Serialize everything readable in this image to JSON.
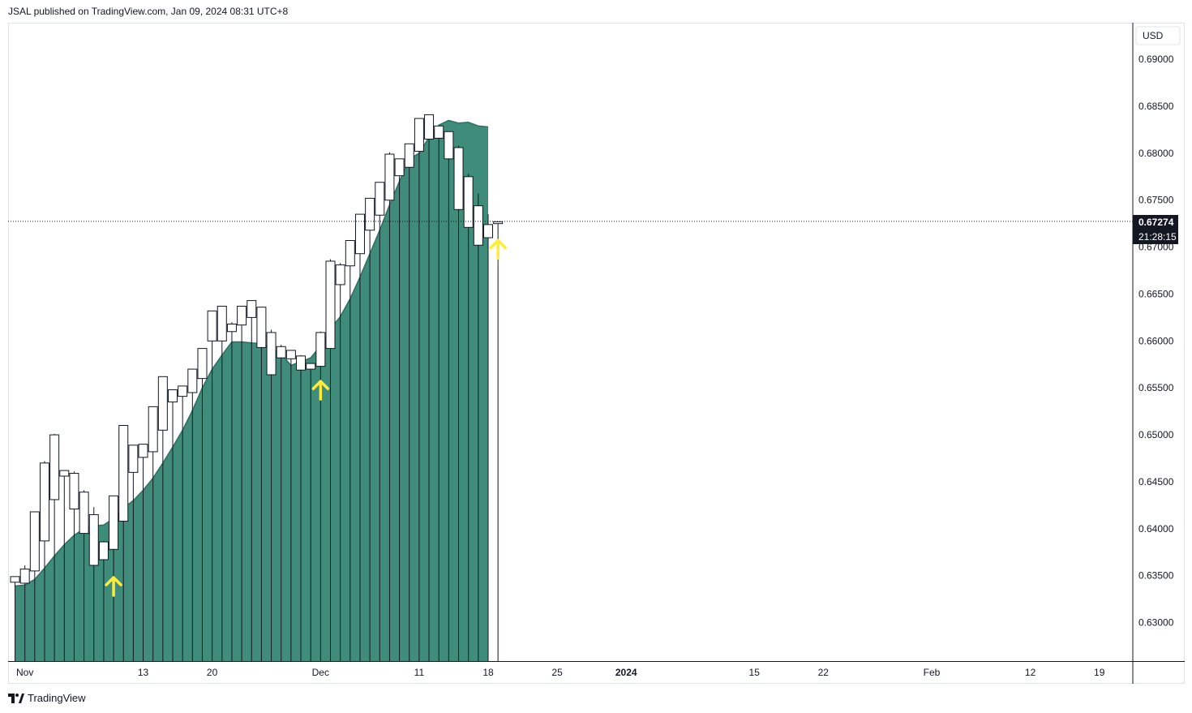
{
  "header": {
    "text": "JSAL published on TradingView.com, Jan 09, 2024 08:31 UTC+8"
  },
  "footer": {
    "brand": "TradingView"
  },
  "currency": "USD",
  "price_label": {
    "value": "0.67274",
    "countdown": "21:28:15"
  },
  "colors": {
    "area_fill": "#3f8c7b",
    "area_line": "#2c6e60",
    "candle_stroke": "#131722",
    "candle_body": "#ffffff",
    "arrow": "#ffeb3b",
    "price_label_bg": "#131722",
    "grid": "#e0e3eb"
  },
  "chart_data": {
    "type": "candlestick",
    "y_ticks": [
      "0.69000",
      "0.68500",
      "0.68000",
      "0.67500",
      "0.67000",
      "0.66500",
      "0.66000",
      "0.65500",
      "0.65000",
      "0.64500",
      "0.64000",
      "0.63500",
      "0.63000"
    ],
    "y_tick_values": [
      0.69,
      0.685,
      0.68,
      0.675,
      0.67,
      0.665,
      0.66,
      0.655,
      0.65,
      0.645,
      0.64,
      0.635,
      0.63
    ],
    "x_ticks": [
      {
        "label": "Nov",
        "day": 0,
        "bold": false
      },
      {
        "label": "13",
        "day": 12,
        "bold": false
      },
      {
        "label": "20",
        "day": 19,
        "bold": false
      },
      {
        "label": "Dec",
        "day": 30,
        "bold": false
      },
      {
        "label": "11",
        "day": 40,
        "bold": false
      },
      {
        "label": "18",
        "day": 47,
        "bold": false
      },
      {
        "label": "25",
        "day": 54,
        "bold": false
      },
      {
        "label": "2024",
        "day": 61,
        "bold": true
      },
      {
        "label": "15",
        "day": 74,
        "bold": false
      },
      {
        "label": "22",
        "day": 81,
        "bold": false
      },
      {
        "label": "Feb",
        "day": 92,
        "bold": false
      },
      {
        "label": "12",
        "day": 102,
        "bold": false
      },
      {
        "label": "19",
        "day": 109,
        "bold": false
      }
    ],
    "ylim": [
      0.6259,
      0.6939
    ],
    "xlim_days": [
      -1.7,
      112.4
    ],
    "candles": [
      {
        "date": "Oct 31",
        "day": -1,
        "open": 0.6343,
        "high": 0.6349,
        "low": 0.6339,
        "close": 0.6349
      },
      {
        "date": "Nov 01",
        "day": 0,
        "open": 0.6342,
        "high": 0.6361,
        "low": 0.6338,
        "close": 0.6357
      },
      {
        "date": "Nov 02",
        "day": 1,
        "open": 0.6355,
        "high": 0.6418,
        "low": 0.6352,
        "close": 0.6418
      },
      {
        "date": "Nov 03",
        "day": 2,
        "open": 0.6387,
        "high": 0.6472,
        "low": 0.6382,
        "close": 0.647
      },
      {
        "date": "Nov 06",
        "day": 3,
        "open": 0.6431,
        "high": 0.6501,
        "low": 0.643,
        "close": 0.65
      },
      {
        "date": "Nov 07",
        "day": 4,
        "open": 0.6456,
        "high": 0.6462,
        "low": 0.645,
        "close": 0.6462
      },
      {
        "date": "Nov 08",
        "day": 5,
        "open": 0.6459,
        "high": 0.6461,
        "low": 0.642,
        "close": 0.6421
      },
      {
        "date": "Nov 09",
        "day": 6,
        "open": 0.6439,
        "high": 0.6441,
        "low": 0.6392,
        "close": 0.6395
      },
      {
        "date": "Nov 10",
        "day": 7,
        "open": 0.6415,
        "high": 0.6423,
        "low": 0.6361,
        "close": 0.6361
      },
      {
        "date": "Nov 13",
        "day": 8,
        "open": 0.6386,
        "high": 0.6387,
        "low": 0.6367,
        "close": 0.6367
      },
      {
        "date": "Nov 14",
        "day": 9,
        "open": 0.6378,
        "high": 0.6435,
        "low": 0.6375,
        "close": 0.6435
      },
      {
        "date": "Nov 15",
        "day": 10,
        "open": 0.6408,
        "high": 0.651,
        "low": 0.6405,
        "close": 0.651
      },
      {
        "date": "Nov 16",
        "day": 11,
        "open": 0.646,
        "high": 0.6489,
        "low": 0.6455,
        "close": 0.6489
      },
      {
        "date": "Nov 17",
        "day": 12,
        "open": 0.6476,
        "high": 0.649,
        "low": 0.6462,
        "close": 0.649
      },
      {
        "date": "Nov 20",
        "day": 13,
        "open": 0.6482,
        "high": 0.653,
        "low": 0.648,
        "close": 0.653
      },
      {
        "date": "Nov 21",
        "day": 14,
        "open": 0.6505,
        "high": 0.6562,
        "low": 0.65,
        "close": 0.6562
      },
      {
        "date": "Nov 22",
        "day": 15,
        "open": 0.6535,
        "high": 0.6548,
        "low": 0.6525,
        "close": 0.6548
      },
      {
        "date": "Nov 23",
        "day": 16,
        "open": 0.6541,
        "high": 0.6552,
        "low": 0.6535,
        "close": 0.6552
      },
      {
        "date": "Nov 24",
        "day": 17,
        "open": 0.6545,
        "high": 0.657,
        "low": 0.654,
        "close": 0.657
      },
      {
        "date": "Nov 27",
        "day": 18,
        "open": 0.656,
        "high": 0.6592,
        "low": 0.6556,
        "close": 0.6592
      },
      {
        "date": "Nov 28",
        "day": 19,
        "open": 0.66,
        "high": 0.6632,
        "low": 0.6598,
        "close": 0.6632
      },
      {
        "date": "Nov 29",
        "day": 20,
        "open": 0.66,
        "high": 0.6637,
        "low": 0.659,
        "close": 0.6637
      },
      {
        "date": "Nov 30",
        "day": 21,
        "open": 0.661,
        "high": 0.662,
        "low": 0.6605,
        "close": 0.6618
      },
      {
        "date": "Dec 01",
        "day": 22,
        "open": 0.6617,
        "high": 0.6637,
        "low": 0.66,
        "close": 0.6637
      },
      {
        "date": "Dec 04",
        "day": 23,
        "open": 0.6625,
        "high": 0.6643,
        "low": 0.658,
        "close": 0.6643
      },
      {
        "date": "Dec 05",
        "day": 24,
        "open": 0.6636,
        "high": 0.6636,
        "low": 0.6591,
        "close": 0.6593
      },
      {
        "date": "Dec 06",
        "day": 25,
        "open": 0.6609,
        "high": 0.6612,
        "low": 0.6563,
        "close": 0.6564
      },
      {
        "date": "Dec 07",
        "day": 26,
        "open": 0.6594,
        "high": 0.6596,
        "low": 0.6578,
        "close": 0.6582
      },
      {
        "date": "Dec 08",
        "day": 27,
        "open": 0.6581,
        "high": 0.659,
        "low": 0.6575,
        "close": 0.659
      },
      {
        "date": "Dec 11",
        "day": 28,
        "open": 0.6584,
        "high": 0.6585,
        "low": 0.6568,
        "close": 0.6569
      },
      {
        "date": "Dec 12",
        "day": 29,
        "open": 0.6576,
        "high": 0.6576,
        "low": 0.657,
        "close": 0.657
      },
      {
        "date": "Dec 13",
        "day": 30,
        "open": 0.6573,
        "high": 0.661,
        "low": 0.6535,
        "close": 0.6609
      },
      {
        "date": "Dec 14",
        "day": 31,
        "open": 0.6592,
        "high": 0.6687,
        "low": 0.659,
        "close": 0.6685
      },
      {
        "date": "Dec 15",
        "day": 32,
        "open": 0.6681,
        "high": 0.6683,
        "low": 0.6655,
        "close": 0.666
      },
      {
        "date": "Dec 18",
        "day": 33,
        "open": 0.668,
        "high": 0.6707,
        "low": 0.666,
        "close": 0.6707
      },
      {
        "date": "Dec 19",
        "day": 34,
        "open": 0.6693,
        "high": 0.6735,
        "low": 0.669,
        "close": 0.6735
      },
      {
        "date": "Dec 20",
        "day": 35,
        "open": 0.6718,
        "high": 0.6752,
        "low": 0.671,
        "close": 0.6752
      },
      {
        "date": "Dec 21",
        "day": 36,
        "open": 0.6734,
        "high": 0.6769,
        "low": 0.673,
        "close": 0.6769
      },
      {
        "date": "Dec 22",
        "day": 37,
        "open": 0.675,
        "high": 0.6801,
        "low": 0.6745,
        "close": 0.6799
      },
      {
        "date": "Dec 25",
        "day": 38,
        "open": 0.6776,
        "high": 0.6794,
        "low": 0.677,
        "close": 0.6794
      },
      {
        "date": "Dec 26",
        "day": 39,
        "open": 0.6785,
        "high": 0.681,
        "low": 0.6775,
        "close": 0.681
      },
      {
        "date": "Dec 27",
        "day": 40,
        "open": 0.6802,
        "high": 0.6837,
        "low": 0.6795,
        "close": 0.6837
      },
      {
        "date": "Dec 28",
        "day": 41,
        "open": 0.6815,
        "high": 0.6841,
        "low": 0.6795,
        "close": 0.6841
      },
      {
        "date": "Jan 01",
        "day": 42,
        "open": 0.6829,
        "high": 0.6829,
        "low": 0.6815,
        "close": 0.6816
      },
      {
        "date": "Jan 02",
        "day": 43,
        "open": 0.6823,
        "high": 0.6823,
        "low": 0.679,
        "close": 0.6794
      },
      {
        "date": "Jan 03",
        "day": 44,
        "open": 0.6806,
        "high": 0.6808,
        "low": 0.674,
        "close": 0.674
      },
      {
        "date": "Jan 04",
        "day": 45,
        "open": 0.6775,
        "high": 0.6778,
        "low": 0.672,
        "close": 0.6721
      },
      {
        "date": "Jan 05",
        "day": 46,
        "open": 0.6744,
        "high": 0.6757,
        "low": 0.6702,
        "close": 0.6702
      },
      {
        "date": "Jan 08",
        "day": 47,
        "open": 0.6724,
        "high": 0.6735,
        "low": 0.6705,
        "close": 0.671
      },
      {
        "date": "Jan 09",
        "day": 48,
        "open": 0.6725,
        "high": 0.6727,
        "low": 0.6722,
        "close": 0.6727
      }
    ],
    "area_values": [
      0.6339,
      0.634,
      0.6346,
      0.6358,
      0.6371,
      0.6383,
      0.6393,
      0.64,
      0.6403,
      0.6404,
      0.6411,
      0.6422,
      0.643,
      0.6441,
      0.6454,
      0.647,
      0.6487,
      0.6505,
      0.6526,
      0.655,
      0.657,
      0.6585,
      0.6599,
      0.6599,
      0.6598,
      0.6597,
      0.6592,
      0.6586,
      0.6574,
      0.6578,
      0.6582,
      0.6595,
      0.6613,
      0.6626,
      0.6645,
      0.6668,
      0.6693,
      0.6718,
      0.6745,
      0.677,
      0.6794,
      0.68,
      0.6817,
      0.683,
      0.6835,
      0.6832,
      0.6833,
      0.6829,
      0.6828
    ],
    "arrows": [
      {
        "day": 9,
        "value": 0.6348
      },
      {
        "day": 30,
        "value": 0.6557
      },
      {
        "day": 48,
        "value": 0.6707
      }
    ]
  }
}
